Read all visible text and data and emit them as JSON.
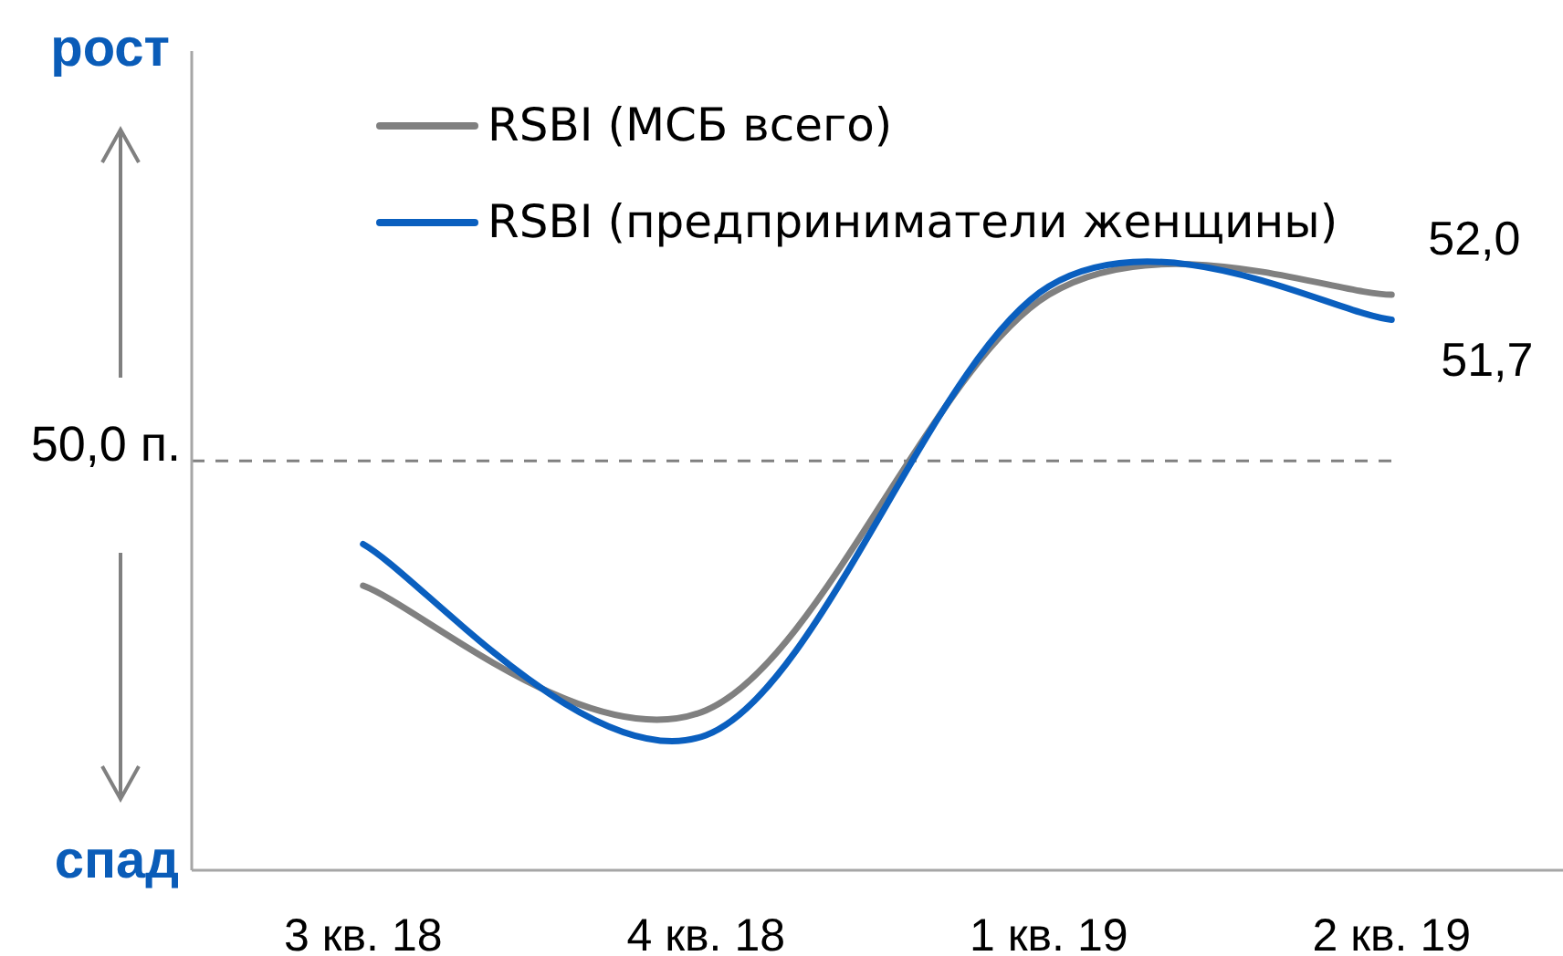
{
  "chart_data": {
    "type": "line",
    "categories": [
      "3 кв. 18",
      "4 кв. 18",
      "1 кв. 19",
      "2 кв. 19"
    ],
    "series": [
      {
        "name": "RSBI (МСБ всего)",
        "color": "#808080",
        "values": [
          48.5,
          47.0,
          52.0,
          52.0
        ],
        "value_labels": [
          null,
          null,
          null,
          "52,0"
        ]
      },
      {
        "name": "RSBI (предприниматели женщины)",
        "color": "#0a5fbf",
        "values": [
          49.0,
          46.7,
          52.1,
          51.7
        ],
        "value_labels": [
          null,
          null,
          null,
          "51,7"
        ]
      }
    ],
    "tick_labels": "x",
    "legend": "top",
    "marker": "none",
    "ref_lines": [
      {
        "axis": "y",
        "value": 50,
        "label": "50,0 п.",
        "color": "#808080",
        "line_style": "dashed"
      }
    ],
    "annotations": [
      "рост",
      "спад"
    ]
  }
}
